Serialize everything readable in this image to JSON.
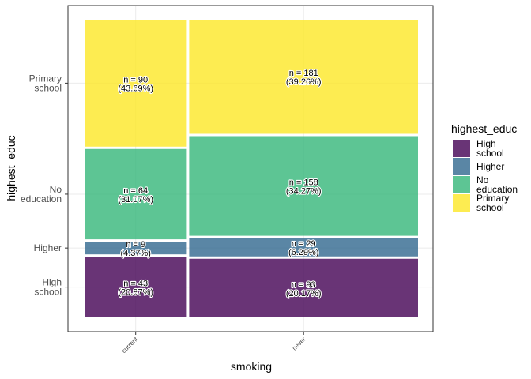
{
  "chart_data": {
    "type": "mosaic",
    "xlabel": "smoking",
    "ylabel": "highest_educ",
    "x_categories": [
      "current",
      "never"
    ],
    "x_totals": [
      206,
      461
    ],
    "y_categories": [
      "High\nschool",
      "Higher",
      "No\neducation",
      "Primary\nschool"
    ],
    "colors": {
      "High\nschool": "#440154",
      "Higher": "#31688e",
      "No\neducation": "#35b779",
      "Primary\nschool": "#fde725"
    },
    "series": [
      {
        "name": "High\nschool",
        "values": [
          43,
          93
        ],
        "labels": [
          "n = 43\n(20.87%)",
          "n = 93\n(20.17%)"
        ]
      },
      {
        "name": "Higher",
        "values": [
          9,
          29
        ],
        "labels": [
          "n = 9\n(4.37%)",
          "n = 29\n(6.29%)"
        ]
      },
      {
        "name": "No\neducation",
        "values": [
          64,
          158
        ],
        "labels": [
          "n = 64\n(31.07%)",
          "n = 158\n(34.27%)"
        ]
      },
      {
        "name": "Primary\nschool",
        "values": [
          90,
          181
        ],
        "labels": [
          "n = 90\n(43.69%)",
          "n = 181\n(39.26%)"
        ]
      }
    ],
    "legend": {
      "title": "highest_educ",
      "position": "right"
    },
    "grid": true
  }
}
